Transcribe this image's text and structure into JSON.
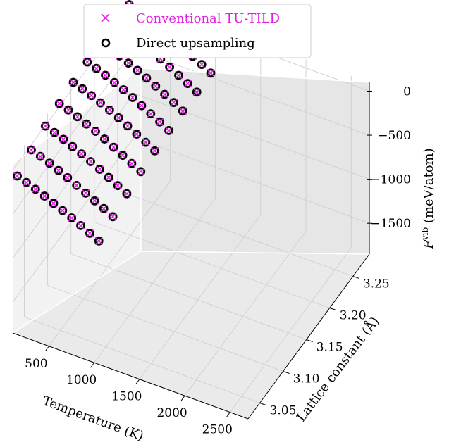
{
  "chart_data": {
    "type": "scatter",
    "projection": "3d",
    "legend": [
      {
        "label": "Conventional TU-TILD",
        "marker": "x",
        "color": "#e020e0"
      },
      {
        "label": "Direct upsampling",
        "marker": "o",
        "color": "#000000"
      }
    ],
    "axes": {
      "x": {
        "label": "Temperature (K)",
        "ticks": [
          500,
          1000,
          1500,
          2000,
          2500
        ],
        "range": [
          100,
          2700
        ]
      },
      "y": {
        "label": "Lattice constant (Å)",
        "ticks": [
          "3.05",
          "3.10",
          "3.15",
          "3.20",
          "3.25"
        ],
        "range": [
          3.025,
          3.285
        ]
      },
      "z": {
        "label": "F^vib (meV/atom)",
        "label_main": "F",
        "label_sup": "vib",
        "label_unit": " (meV/atom)",
        "ticks": [
          "0",
          "−500",
          "−1000",
          "−1500"
        ],
        "range": [
          -1850,
          100
        ]
      }
    },
    "temperature_start": 100,
    "temperature_step": 100,
    "temperature_count": 10,
    "series": [
      {
        "lattice_constant": 3.035,
        "F_vib": [
          -140,
          -175,
          -215,
          -255,
          -300,
          -345,
          -390,
          -440,
          -490,
          -540
        ]
      },
      {
        "lattice_constant": 3.065,
        "F_vib": [
          -60,
          -95,
          -135,
          -180,
          -225,
          -275,
          -325,
          -375,
          -425,
          -480
        ]
      },
      {
        "lattice_constant": 3.095,
        "F_vib": [
          -5,
          -40,
          -80,
          -125,
          -170,
          -220,
          -270,
          -325,
          -380,
          -435
        ]
      },
      {
        "lattice_constant": 3.125,
        "F_vib": [
          35,
          0,
          -40,
          -85,
          -130,
          -180,
          -235,
          -290,
          -345,
          -400
        ]
      },
      {
        "lattice_constant": 3.155,
        "F_vib": [
          60,
          25,
          -15,
          -60,
          -105,
          -155,
          -210,
          -265,
          -320,
          -380
        ]
      },
      {
        "lattice_constant": 3.185,
        "F_vib": [
          75,
          40,
          0,
          -45,
          -90,
          -140,
          -195,
          -250,
          -305,
          -365
        ]
      },
      {
        "lattice_constant": 3.215,
        "F_vib": [
          80,
          45,
          5,
          -40,
          -85,
          -135,
          -190,
          -245,
          -300,
          -360
        ]
      },
      {
        "lattice_constant": 3.245,
        "F_vib": [
          80,
          45,
          5,
          -40,
          -85,
          -135,
          -190,
          -245,
          -300,
          -360
        ]
      },
      {
        "lattice_constant": 3.275,
        "F_vib": [
          80,
          45,
          5,
          -40,
          -85,
          -135,
          -190,
          -245,
          -300,
          -360
        ]
      }
    ]
  }
}
